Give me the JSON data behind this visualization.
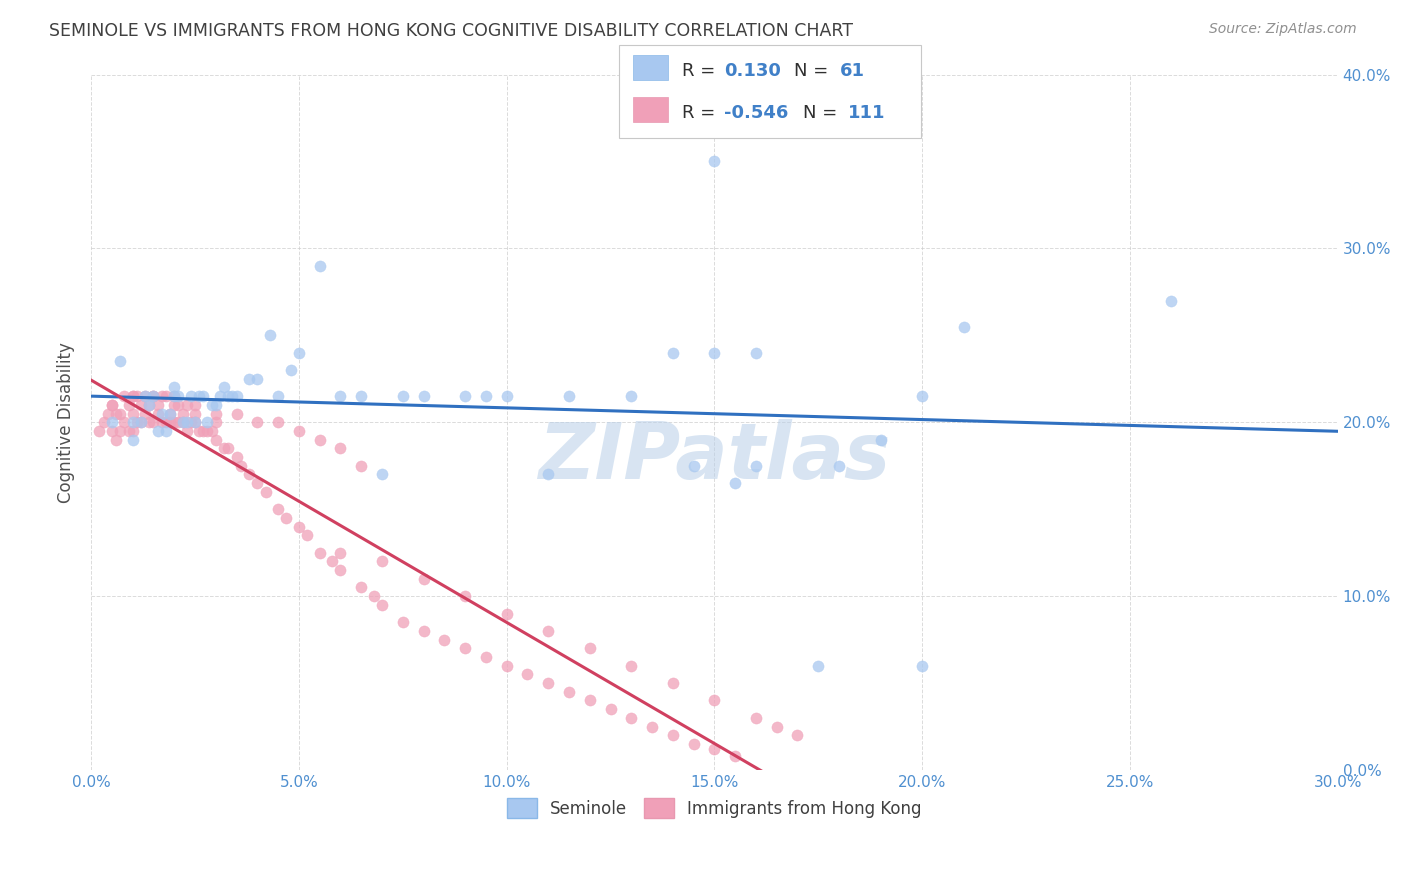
{
  "title": "SEMINOLE VS IMMIGRANTS FROM HONG KONG COGNITIVE DISABILITY CORRELATION CHART",
  "source": "Source: ZipAtlas.com",
  "ylabel": "Cognitive Disability",
  "xlim": [
    0.0,
    0.3
  ],
  "ylim": [
    0.0,
    0.4
  ],
  "watermark": "ZIPatlas",
  "legend_label1": "Seminole",
  "legend_label2": "Immigrants from Hong Kong",
  "R1": "0.130",
  "N1": "61",
  "R2": "-0.546",
  "N2": "111",
  "color1": "#a8c8f0",
  "color2": "#f0a0b8",
  "line1_color": "#3070c0",
  "line2_color": "#d04060",
  "background": "#ffffff",
  "grid_color": "#cccccc",
  "title_color": "#404040",
  "seminole_x": [
    0.005,
    0.007,
    0.01,
    0.01,
    0.012,
    0.013,
    0.014,
    0.015,
    0.016,
    0.017,
    0.018,
    0.019,
    0.02,
    0.02,
    0.021,
    0.022,
    0.023,
    0.024,
    0.025,
    0.026,
    0.027,
    0.028,
    0.029,
    0.03,
    0.031,
    0.032,
    0.033,
    0.034,
    0.035,
    0.038,
    0.04,
    0.043,
    0.045,
    0.048,
    0.05,
    0.055,
    0.06,
    0.065,
    0.07,
    0.075,
    0.08,
    0.09,
    0.095,
    0.1,
    0.11,
    0.115,
    0.13,
    0.14,
    0.15,
    0.16,
    0.15,
    0.16,
    0.2,
    0.18,
    0.19,
    0.21,
    0.145,
    0.155,
    0.26,
    0.2,
    0.175
  ],
  "seminole_y": [
    0.2,
    0.235,
    0.19,
    0.2,
    0.2,
    0.215,
    0.21,
    0.215,
    0.195,
    0.205,
    0.195,
    0.205,
    0.215,
    0.22,
    0.215,
    0.2,
    0.2,
    0.215,
    0.2,
    0.215,
    0.215,
    0.2,
    0.21,
    0.21,
    0.215,
    0.22,
    0.215,
    0.215,
    0.215,
    0.225,
    0.225,
    0.25,
    0.215,
    0.23,
    0.24,
    0.29,
    0.215,
    0.215,
    0.17,
    0.215,
    0.215,
    0.215,
    0.215,
    0.215,
    0.17,
    0.215,
    0.215,
    0.24,
    0.35,
    0.24,
    0.24,
    0.175,
    0.215,
    0.175,
    0.19,
    0.255,
    0.175,
    0.165,
    0.27,
    0.06,
    0.06
  ],
  "hk_x": [
    0.002,
    0.003,
    0.004,
    0.005,
    0.005,
    0.006,
    0.006,
    0.007,
    0.007,
    0.008,
    0.008,
    0.009,
    0.009,
    0.01,
    0.01,
    0.01,
    0.011,
    0.011,
    0.012,
    0.012,
    0.013,
    0.013,
    0.014,
    0.014,
    0.015,
    0.015,
    0.016,
    0.016,
    0.017,
    0.017,
    0.018,
    0.018,
    0.019,
    0.019,
    0.02,
    0.02,
    0.021,
    0.021,
    0.022,
    0.022,
    0.023,
    0.023,
    0.024,
    0.025,
    0.025,
    0.026,
    0.027,
    0.028,
    0.029,
    0.03,
    0.03,
    0.032,
    0.033,
    0.035,
    0.036,
    0.038,
    0.04,
    0.042,
    0.045,
    0.047,
    0.05,
    0.052,
    0.055,
    0.058,
    0.06,
    0.065,
    0.068,
    0.07,
    0.075,
    0.08,
    0.085,
    0.09,
    0.095,
    0.1,
    0.105,
    0.11,
    0.115,
    0.12,
    0.125,
    0.13,
    0.135,
    0.14,
    0.145,
    0.15,
    0.155,
    0.06,
    0.07,
    0.08,
    0.09,
    0.1,
    0.11,
    0.12,
    0.13,
    0.14,
    0.15,
    0.16,
    0.165,
    0.17,
    0.005,
    0.01,
    0.015,
    0.02,
    0.025,
    0.03,
    0.035,
    0.04,
    0.045,
    0.05,
    0.055,
    0.06,
    0.065
  ],
  "hk_y": [
    0.195,
    0.2,
    0.205,
    0.195,
    0.21,
    0.19,
    0.205,
    0.195,
    0.205,
    0.2,
    0.215,
    0.195,
    0.21,
    0.195,
    0.205,
    0.215,
    0.2,
    0.215,
    0.2,
    0.21,
    0.205,
    0.215,
    0.2,
    0.21,
    0.2,
    0.215,
    0.205,
    0.21,
    0.2,
    0.215,
    0.2,
    0.215,
    0.2,
    0.205,
    0.2,
    0.215,
    0.2,
    0.21,
    0.2,
    0.205,
    0.195,
    0.21,
    0.2,
    0.2,
    0.205,
    0.195,
    0.195,
    0.195,
    0.195,
    0.19,
    0.2,
    0.185,
    0.185,
    0.18,
    0.175,
    0.17,
    0.165,
    0.16,
    0.15,
    0.145,
    0.14,
    0.135,
    0.125,
    0.12,
    0.115,
    0.105,
    0.1,
    0.095,
    0.085,
    0.08,
    0.075,
    0.07,
    0.065,
    0.06,
    0.055,
    0.05,
    0.045,
    0.04,
    0.035,
    0.03,
    0.025,
    0.02,
    0.015,
    0.012,
    0.008,
    0.125,
    0.12,
    0.11,
    0.1,
    0.09,
    0.08,
    0.07,
    0.06,
    0.05,
    0.04,
    0.03,
    0.025,
    0.02,
    0.21,
    0.215,
    0.215,
    0.21,
    0.21,
    0.205,
    0.205,
    0.2,
    0.2,
    0.195,
    0.19,
    0.185,
    0.175
  ]
}
